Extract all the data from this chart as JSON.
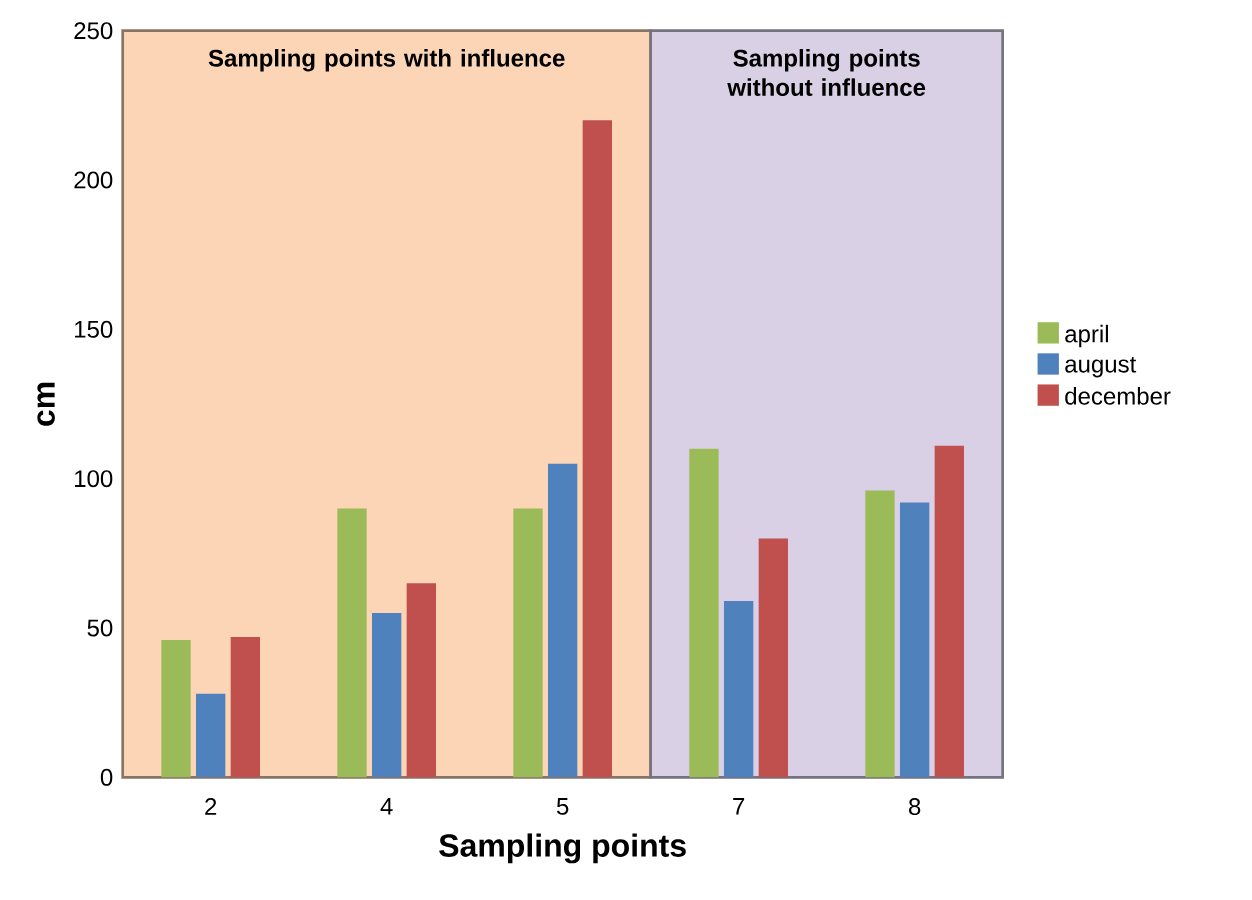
{
  "chart_data": {
    "type": "bar",
    "xlabel": "Sampling points",
    "ylabel": "cm",
    "categories": [
      "2",
      "4",
      "5",
      "7",
      "8"
    ],
    "series": [
      {
        "name": "april",
        "color": "#9bbb59",
        "values": [
          46,
          90,
          90,
          110,
          96
        ]
      },
      {
        "name": "august",
        "color": "#4f81bd",
        "values": [
          28,
          55,
          105,
          59,
          92
        ]
      },
      {
        "name": "december",
        "color": "#c0504d",
        "values": [
          47,
          65,
          220,
          80,
          111
        ]
      }
    ],
    "ylim": [
      0,
      250
    ],
    "yticks": [
      0,
      50,
      100,
      150,
      200,
      250
    ],
    "bands": [
      {
        "axis": "x",
        "from": "2",
        "to": "5",
        "label": "Sampling points with influence",
        "color": "#fbd5b5"
      },
      {
        "axis": "x",
        "from": "7",
        "to": "8",
        "label": "Sampling points without  influence",
        "color": "#d9d0e6"
      }
    ],
    "legend": "right"
  }
}
